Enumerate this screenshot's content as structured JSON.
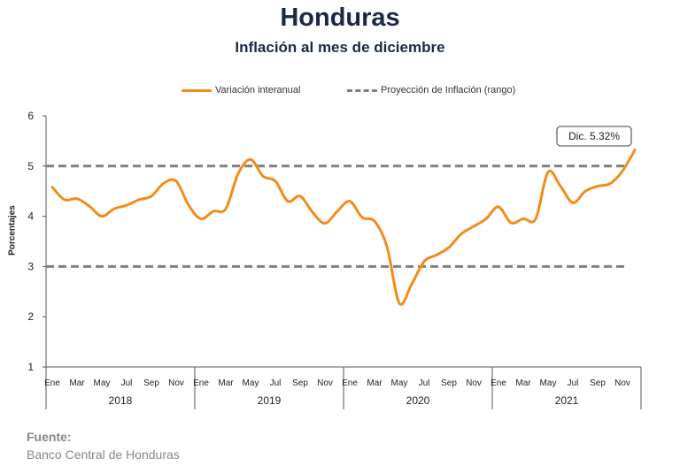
{
  "header": {
    "title": "Honduras",
    "subtitle": "Inflación al mes de diciembre"
  },
  "legend": {
    "series_label": "Variación interanual",
    "range_label": "Proyección de Inflación (rango)"
  },
  "callout": "Dic. 5.32%",
  "source": {
    "heading": "Fuente:",
    "text": "Banco Central de Honduras"
  },
  "colors": {
    "series": "#f28c1c",
    "range": "#808080",
    "axis": "#555555",
    "title": "#1b2a44"
  },
  "chart_data": {
    "type": "line",
    "title": "Inflación al mes de diciembre",
    "ylabel": "Porcentajes",
    "ylim": [
      1,
      6
    ],
    "yticks": [
      1,
      2,
      3,
      4,
      5,
      6
    ],
    "grid": false,
    "legend_position": "top",
    "month_labels": [
      "Ene",
      "Mar",
      "May",
      "Jul",
      "Sep",
      "Nov"
    ],
    "years": [
      "2018",
      "2019",
      "2020",
      "2021"
    ],
    "series": [
      {
        "name": "Variación interanual",
        "values": [
          4.58,
          4.33,
          4.35,
          4.2,
          4.0,
          4.15,
          4.22,
          4.33,
          4.4,
          4.66,
          4.7,
          4.22,
          3.95,
          4.1,
          4.15,
          4.85,
          5.13,
          4.8,
          4.7,
          4.3,
          4.4,
          4.08,
          3.86,
          4.1,
          4.3,
          3.98,
          3.9,
          3.4,
          2.27,
          2.65,
          3.1,
          3.23,
          3.38,
          3.65,
          3.8,
          3.95,
          4.19,
          3.87,
          3.95,
          3.95,
          4.88,
          4.6,
          4.27,
          4.5,
          4.6,
          4.65,
          4.9,
          5.32
        ]
      }
    ],
    "range": [
      {
        "name": "Proyección de Inflación (rango)",
        "value": 3
      },
      {
        "name": "Proyección de Inflación (rango)",
        "value": 5
      }
    ]
  }
}
